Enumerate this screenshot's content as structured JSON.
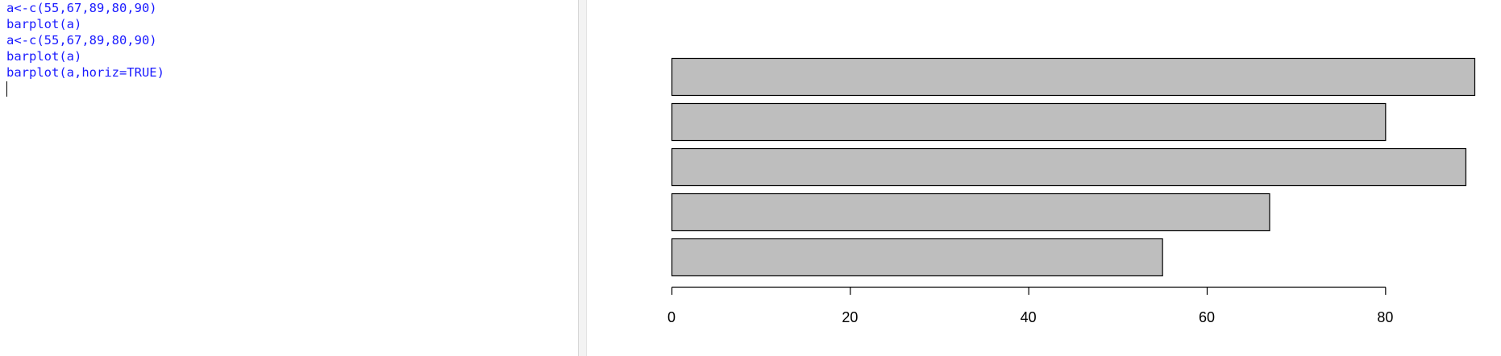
{
  "console": {
    "lines": [
      "a<-c(55,67,89,80,90)",
      "barplot(a)",
      "a<-c(55,67,89,80,90)",
      "barplot(a)",
      "barplot(a,horiz=TRUE)"
    ],
    "text_color": "#1a1aff"
  },
  "chart_data": {
    "type": "bar",
    "orientation": "horizontal",
    "values": [
      55,
      67,
      89,
      80,
      90
    ],
    "xlim": [
      0,
      90
    ],
    "xticks": [
      0,
      20,
      40,
      60,
      80
    ],
    "tick_labels": [
      "0",
      "20",
      "40",
      "60",
      "80"
    ],
    "title": "",
    "xlabel": "",
    "ylabel": "",
    "grid": false,
    "legend": "none",
    "bar_fill": "#bebebe",
    "bar_stroke": "#000000"
  }
}
